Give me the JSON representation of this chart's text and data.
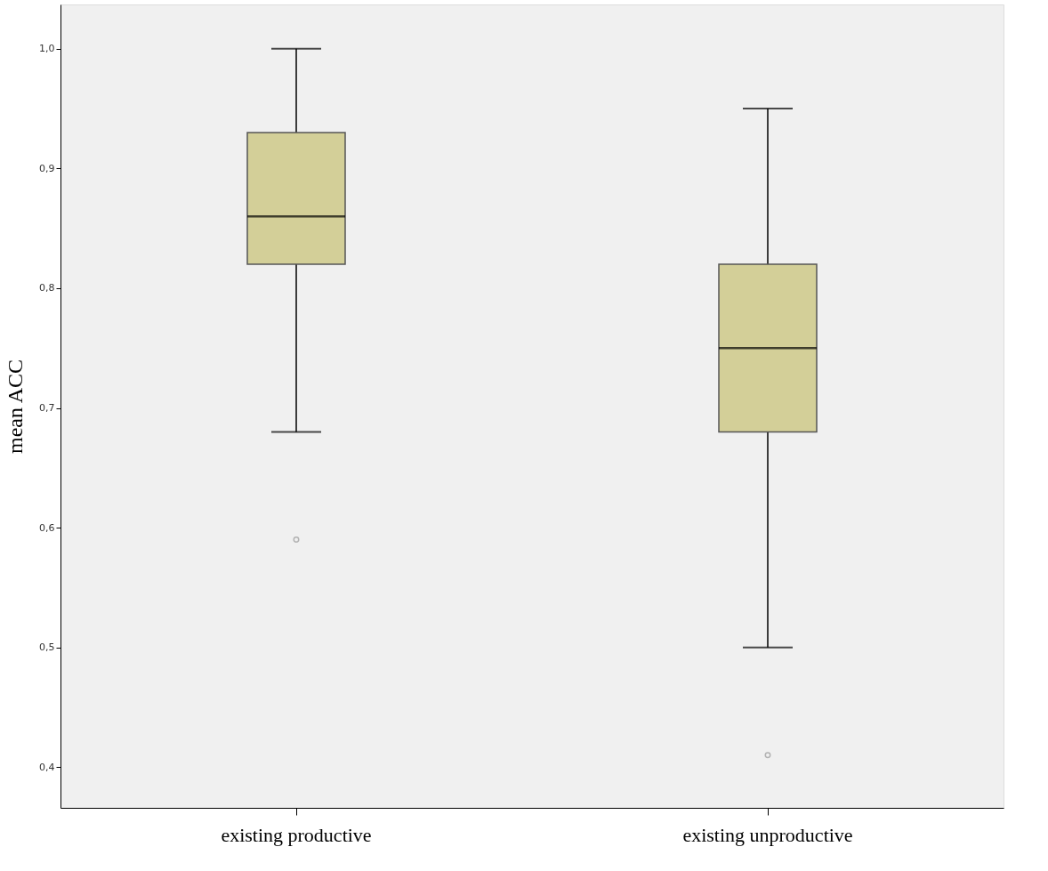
{
  "chart_data": {
    "type": "box",
    "ylabel": "mean ACC",
    "categories": [
      "existing productive",
      "existing unproductive"
    ],
    "boxes": [
      {
        "low": 0.68,
        "q1": 0.82,
        "median": 0.86,
        "q3": 0.93,
        "high": 1.0,
        "outliers": [
          0.59
        ]
      },
      {
        "low": 0.5,
        "q1": 0.68,
        "median": 0.75,
        "q3": 0.82,
        "high": 0.95,
        "outliers": [
          0.41
        ]
      }
    ],
    "color": "#d3cf98",
    "ylim": [
      0.366,
      1.037
    ],
    "yticks": [
      {
        "value": 0.4,
        "label": "0,4"
      },
      {
        "value": 0.5,
        "label": "0,5"
      },
      {
        "value": 0.6,
        "label": "0,6"
      },
      {
        "value": 0.7,
        "label": "0,7"
      },
      {
        "value": 0.8,
        "label": "0,8"
      },
      {
        "value": 0.9,
        "label": "0,9"
      },
      {
        "value": 1.0,
        "label": "1,0"
      }
    ],
    "grid": false
  }
}
